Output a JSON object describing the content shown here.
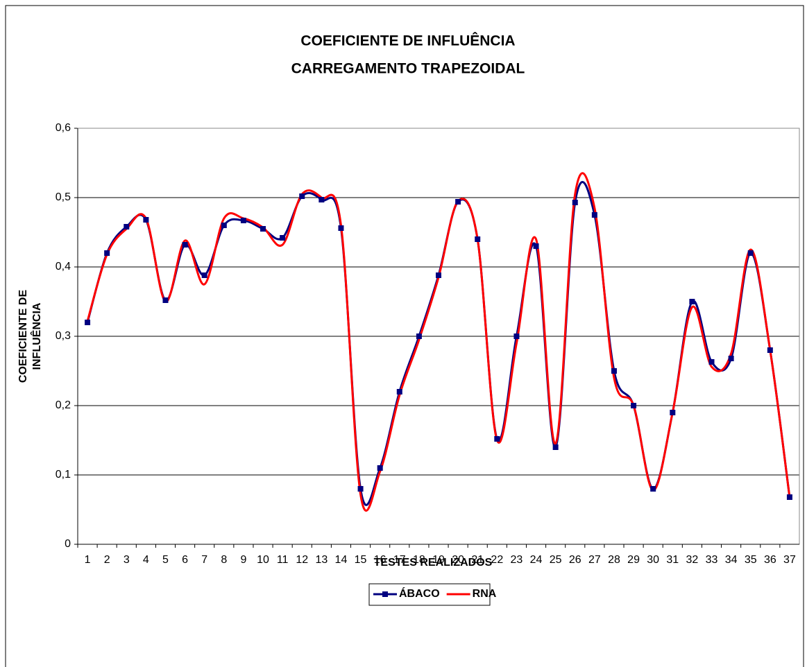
{
  "chart_data": {
    "type": "line",
    "title": "COEFICIENTE DE INFLUÊNCIA",
    "subtitle": "CARREGAMENTO TRAPEZOIDAL",
    "x_label": "TESTES REALIZADOS",
    "y_label": [
      "COEFICIENTE DE",
      "INFLUÊNCIA"
    ],
    "categories": [
      "1",
      "2",
      "3",
      "4",
      "5",
      "6",
      "7",
      "8",
      "9",
      "10",
      "11",
      "12",
      "13",
      "14",
      "15",
      "16",
      "17",
      "18",
      "19",
      "20",
      "21",
      "22",
      "23",
      "24",
      "25",
      "26",
      "27",
      "28",
      "29",
      "30",
      "31",
      "32",
      "33",
      "34",
      "35",
      "36",
      "37"
    ],
    "series": [
      {
        "name": "ÁBACO",
        "color": "#000080",
        "marker": "square",
        "values": [
          0.32,
          0.42,
          0.458,
          0.468,
          0.352,
          0.432,
          0.388,
          0.46,
          0.467,
          0.455,
          0.442,
          0.502,
          0.497,
          0.456,
          0.08,
          0.11,
          0.22,
          0.3,
          0.388,
          0.494,
          0.44,
          0.152,
          0.3,
          0.43,
          0.14,
          0.493,
          0.475,
          0.25,
          0.2,
          0.08,
          0.19,
          0.35,
          0.263,
          0.268,
          0.42,
          0.28,
          0.068
        ]
      },
      {
        "name": "RNA",
        "color": "#ff0000",
        "values": [
          0.322,
          0.418,
          0.455,
          0.47,
          0.35,
          0.438,
          0.375,
          0.47,
          0.47,
          0.457,
          0.432,
          0.505,
          0.5,
          0.46,
          0.072,
          0.105,
          0.215,
          0.295,
          0.385,
          0.495,
          0.44,
          0.15,
          0.29,
          0.44,
          0.145,
          0.505,
          0.485,
          0.24,
          0.2,
          0.078,
          0.19,
          0.342,
          0.256,
          0.275,
          0.425,
          0.28,
          0.068
        ]
      }
    ],
    "ylim": [
      0,
      0.6
    ],
    "yticks": [
      0,
      {
        "value": 0.1,
        "label": "0,1"
      },
      {
        "value": 0.2,
        "label": "0,2"
      },
      {
        "value": 0.3,
        "label": "0,3"
      },
      {
        "value": 0.4,
        "label": "0,4"
      },
      {
        "value": 0.5,
        "label": "0,5"
      },
      {
        "value": 0.6,
        "label": "0,6"
      }
    ],
    "grid": true,
    "smooth": true,
    "legend": "bottom"
  }
}
